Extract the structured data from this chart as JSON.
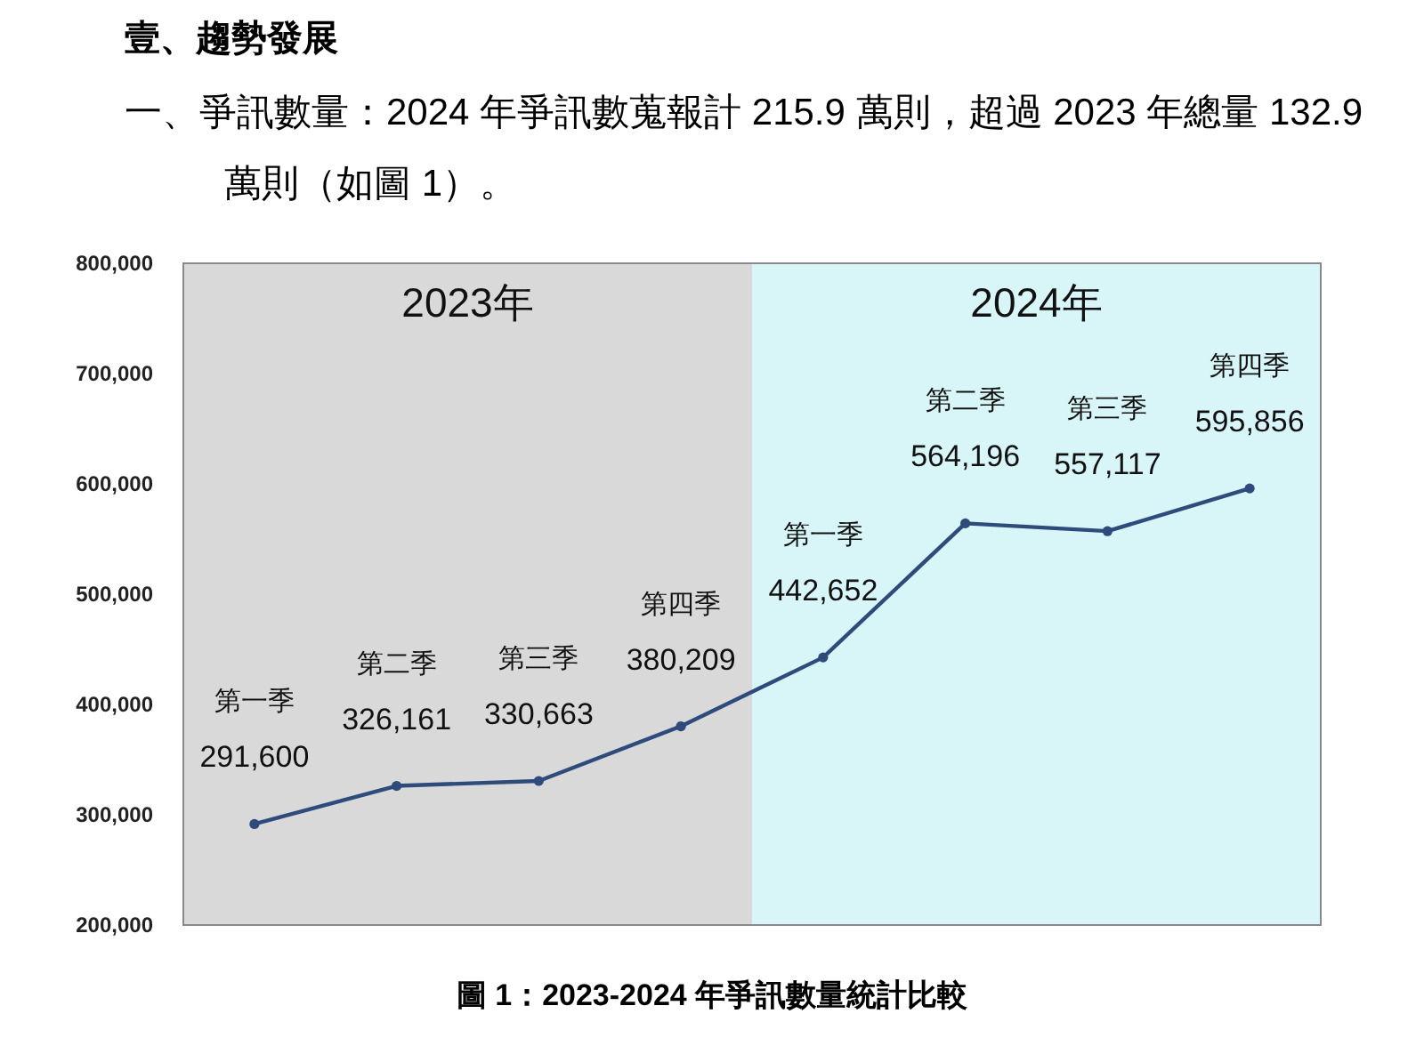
{
  "chart_data": {
    "type": "line",
    "title": "壹、趨勢發展",
    "subtitle": "一、爭訊數量：2024 年爭訊數蒐報計 215.9 萬則，超過 2023 年總量 132.9 萬則（如圖 1）。",
    "categories": [
      "第一季",
      "第二季",
      "第三季",
      "第四季",
      "第一季",
      "第二季",
      "第三季",
      "第四季"
    ],
    "series": [
      {
        "color": "#2f4b7c",
        "values": [
          291600,
          326161,
          330663,
          380209,
          442652,
          564196,
          557117,
          595856
        ],
        "value_labels": [
          "291,600",
          "326,161",
          "330,663",
          "380,209",
          "442,652",
          "564,196",
          "557,117",
          "595,856"
        ]
      }
    ],
    "ylim": [
      200000,
      800000
    ],
    "yticks": [
      {
        "value": 200000,
        "label": "200,000"
      },
      {
        "value": 300000,
        "label": "300,000"
      },
      {
        "value": 400000,
        "label": "400,000"
      },
      {
        "value": 500000,
        "label": "500,000"
      },
      {
        "value": 600000,
        "label": "600,000"
      },
      {
        "value": 700000,
        "label": "700,000"
      },
      {
        "value": 800000,
        "label": "800,000"
      }
    ],
    "bands": [
      {
        "axis": "x",
        "from": "第一季",
        "to": "第四季",
        "label": "2023年",
        "color": "#d9d9d9"
      }
    ],
    "annotations": [
      "2024年",
      "圖 1：2023-2024 年爭訊數量統計比較"
    ],
    "marker": "circle",
    "line_style": "solid",
    "grid": false
  }
}
